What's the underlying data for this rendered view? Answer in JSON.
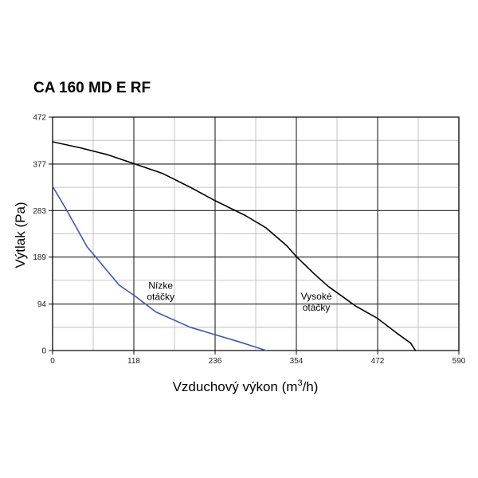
{
  "chart_data": {
    "type": "line",
    "title": "CA 160 MD E RF",
    "xlabel": "Vzduchový výkon (m³/h)",
    "xlabel_main": "Vzduchový výkon (m",
    "xlabel_sup": "3",
    "xlabel_end": "/h)",
    "ylabel": "Výtlak (Pa)",
    "xlim": [
      0,
      590
    ],
    "ylim": [
      0,
      472
    ],
    "x_major_ticks": [
      0,
      118,
      236,
      354,
      472,
      590
    ],
    "y_major_ticks": [
      0,
      94,
      189,
      283,
      377,
      472
    ],
    "x_minor_ticks": [
      59,
      177,
      295,
      413,
      531
    ],
    "y_minor_ticks": [
      47,
      142,
      236,
      330,
      425
    ],
    "x_tick_labels": [
      "0",
      "118",
      "236",
      "354",
      "472",
      "590"
    ],
    "y_tick_labels": [
      "0",
      "94",
      "189",
      "283",
      "377",
      "472"
    ],
    "grid": true,
    "series": [
      {
        "name": "Vysoké otáčky",
        "color": "#000000",
        "annotation_line1": "Vysoké",
        "annotation_line2": "otáčky",
        "annotation_at": [
          383,
          90
        ],
        "x": [
          0,
          40,
          80,
          118,
          160,
          200,
          236,
          280,
          310,
          340,
          354,
          380,
          400,
          420,
          440,
          472,
          500,
          520,
          527
        ],
        "y": [
          422,
          410,
          396,
          378,
          358,
          330,
          303,
          273,
          248,
          212,
          190,
          155,
          130,
          110,
          90,
          65,
          35,
          15,
          0
        ]
      },
      {
        "name": "Nízke otáčky",
        "color": "#3c5aa8",
        "annotation_line1": "Nízke",
        "annotation_line2": "otáčky",
        "annotation_at": [
          157,
          112
        ],
        "x": [
          0,
          20,
          50,
          97,
          118,
          150,
          200,
          236,
          270,
          295,
          310
        ],
        "y": [
          332,
          285,
          210,
          132,
          112,
          78,
          47,
          32,
          18,
          7,
          0
        ]
      }
    ]
  }
}
